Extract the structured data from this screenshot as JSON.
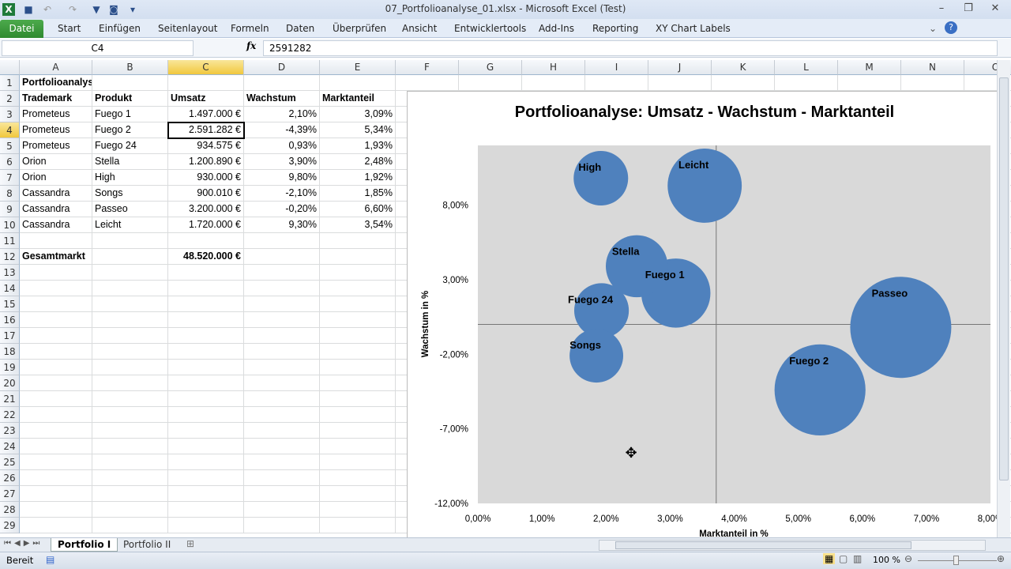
{
  "window": {
    "title": "07_Portfolioanalyse_01.xlsx  -  Microsoft Excel (Test)"
  },
  "ribbon": {
    "file": "Datei",
    "tabs": [
      "Start",
      "Einfügen",
      "Seitenlayout",
      "Formeln",
      "Daten",
      "Überprüfen",
      "Ansicht",
      "Entwicklertools",
      "Add-Ins",
      "Reporting",
      "XY Chart Labels"
    ]
  },
  "formula_bar": {
    "name_box": "C4",
    "fx": "fx",
    "value": "2591282"
  },
  "columns": [
    "A",
    "B",
    "C",
    "D",
    "E",
    "F",
    "G",
    "H",
    "I",
    "J",
    "K",
    "L",
    "M",
    "N",
    "O"
  ],
  "selected_cell": {
    "col": "C",
    "row": 4
  },
  "rows": [
    [
      "Portfolioanalyse",
      "",
      "",
      "",
      ""
    ],
    [
      "Trademark",
      "Produkt",
      "Umsatz",
      "Wachstum",
      "Marktanteil"
    ],
    [
      "Prometeus",
      "Fuego 1",
      "1.497.000 €",
      "2,10%",
      "3,09%"
    ],
    [
      "Prometeus",
      "Fuego 2",
      "2.591.282 €",
      "-4,39%",
      "5,34%"
    ],
    [
      "Prometeus",
      "Fuego 24",
      "934.575 €",
      "0,93%",
      "1,93%"
    ],
    [
      "Orion",
      "Stella",
      "1.200.890 €",
      "3,90%",
      "2,48%"
    ],
    [
      "Orion",
      "High",
      "930.000 €",
      "9,80%",
      "1,92%"
    ],
    [
      "Cassandra",
      "Songs",
      "900.010 €",
      "-2,10%",
      "1,85%"
    ],
    [
      "Cassandra",
      "Passeo",
      "3.200.000 €",
      "-0,20%",
      "6,60%"
    ],
    [
      "Cassandra",
      "Leicht",
      "1.720.000 €",
      "9,30%",
      "3,54%"
    ],
    [
      "",
      "",
      "",
      "",
      ""
    ],
    [
      "Gesamtmarkt",
      "",
      "48.520.000 €",
      "",
      ""
    ]
  ],
  "row_count": 29,
  "chart_data": {
    "type": "bubble",
    "title": "Portfolioanalyse: Umsatz - Wachstum - Marktanteil",
    "xlabel": "Marktanteil in %",
    "ylabel": "Wachstum in %",
    "xlim": [
      0,
      8
    ],
    "ylim": [
      -12,
      12
    ],
    "x_ticks": [
      "0,00%",
      "1,00%",
      "2,00%",
      "3,00%",
      "4,00%",
      "5,00%",
      "6,00%",
      "7,00%",
      "8,00%"
    ],
    "y_ticks": [
      "8,00%",
      "3,00%",
      "-2,00%",
      "-7,00%",
      "-12,00%"
    ],
    "y_tick_values": [
      8,
      3,
      -2,
      -7,
      -12
    ],
    "axis_cross": {
      "x": 3.72,
      "y": 0
    },
    "bubble_color": "#4f81bd",
    "plot_bg": "#d9d9d9",
    "points": [
      {
        "label": "Fuego 1",
        "x": 3.09,
        "y": 2.1,
        "size": 1497000
      },
      {
        "label": "Fuego 2",
        "x": 5.34,
        "y": -4.39,
        "size": 2591282
      },
      {
        "label": "Fuego 24",
        "x": 1.93,
        "y": 0.93,
        "size": 934575
      },
      {
        "label": "Stella",
        "x": 2.48,
        "y": 3.9,
        "size": 1200890
      },
      {
        "label": "High",
        "x": 1.92,
        "y": 9.8,
        "size": 930000
      },
      {
        "label": "Songs",
        "x": 1.85,
        "y": -2.1,
        "size": 900010
      },
      {
        "label": "Passeo",
        "x": 6.6,
        "y": -0.2,
        "size": 3200000
      },
      {
        "label": "Leicht",
        "x": 3.54,
        "y": 9.3,
        "size": 1720000
      }
    ]
  },
  "sheets": {
    "tabs": [
      "Portfolio I",
      "Portfolio II"
    ],
    "active": 0
  },
  "status": {
    "ready": "Bereit",
    "zoom": "100 %"
  }
}
